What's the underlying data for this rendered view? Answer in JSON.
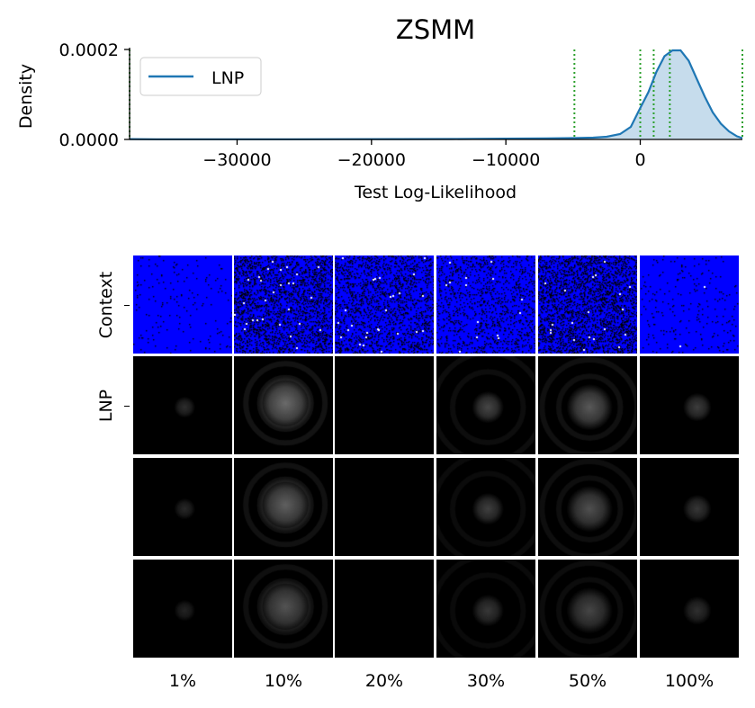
{
  "chart_data": [
    {
      "type": "area",
      "title": "ZSMM",
      "xlabel": "Test Log-Likelihood",
      "ylabel": "Density",
      "xlim": [
        -38000,
        7600
      ],
      "ylim": [
        0,
        0.0002
      ],
      "x_ticks": [
        -30000,
        -20000,
        -10000,
        0
      ],
      "x_tick_labels": [
        "−30000",
        "−20000",
        "−10000",
        "0"
      ],
      "y_ticks": [
        0,
        0.0002
      ],
      "y_tick_labels": [
        "0.0000",
        "0.0002"
      ],
      "legend": "top-left",
      "series": [
        {
          "name": "LNP",
          "color": "#1f77b4",
          "fill": "#c6dcec",
          "x": [
            -38000,
            -36000,
            -34000,
            -30000,
            -26000,
            -22000,
            -18000,
            -14000,
            -10000,
            -7000,
            -5000,
            -3500,
            -2500,
            -1500,
            -700,
            0,
            600,
            1200,
            1800,
            2400,
            3000,
            3600,
            4200,
            4800,
            5400,
            6000,
            6600,
            7200,
            7600
          ],
          "y": [
            8e-07,
            3e-07,
            3e-07,
            4e-07,
            5e-07,
            6e-07,
            8e-07,
            1e-06,
            1.8e-06,
            2.5e-06,
            3e-06,
            4e-06,
            6e-06,
            1.2e-05,
            2.8e-05,
            7e-05,
            0.000105,
            0.00015,
            0.000185,
            0.000198,
            0.000198,
            0.000175,
            0.000135,
            9.5e-05,
            6e-05,
            3.5e-05,
            1.8e-05,
            7e-06,
            3e-06
          ]
        }
      ],
      "vlines": {
        "color": "#2ca02c",
        "style": "dotted",
        "x": [
          -38000,
          -4900,
          0,
          1000,
          2200,
          7600
        ]
      }
    },
    {
      "type": "heatmap",
      "rows": [
        "Context",
        "LNP",
        "",
        ""
      ],
      "columns": [
        "1%",
        "10%",
        "20%",
        "30%",
        "50%",
        "100%"
      ],
      "context_color": "#0000ff",
      "sample_color": "#000000"
    }
  ]
}
